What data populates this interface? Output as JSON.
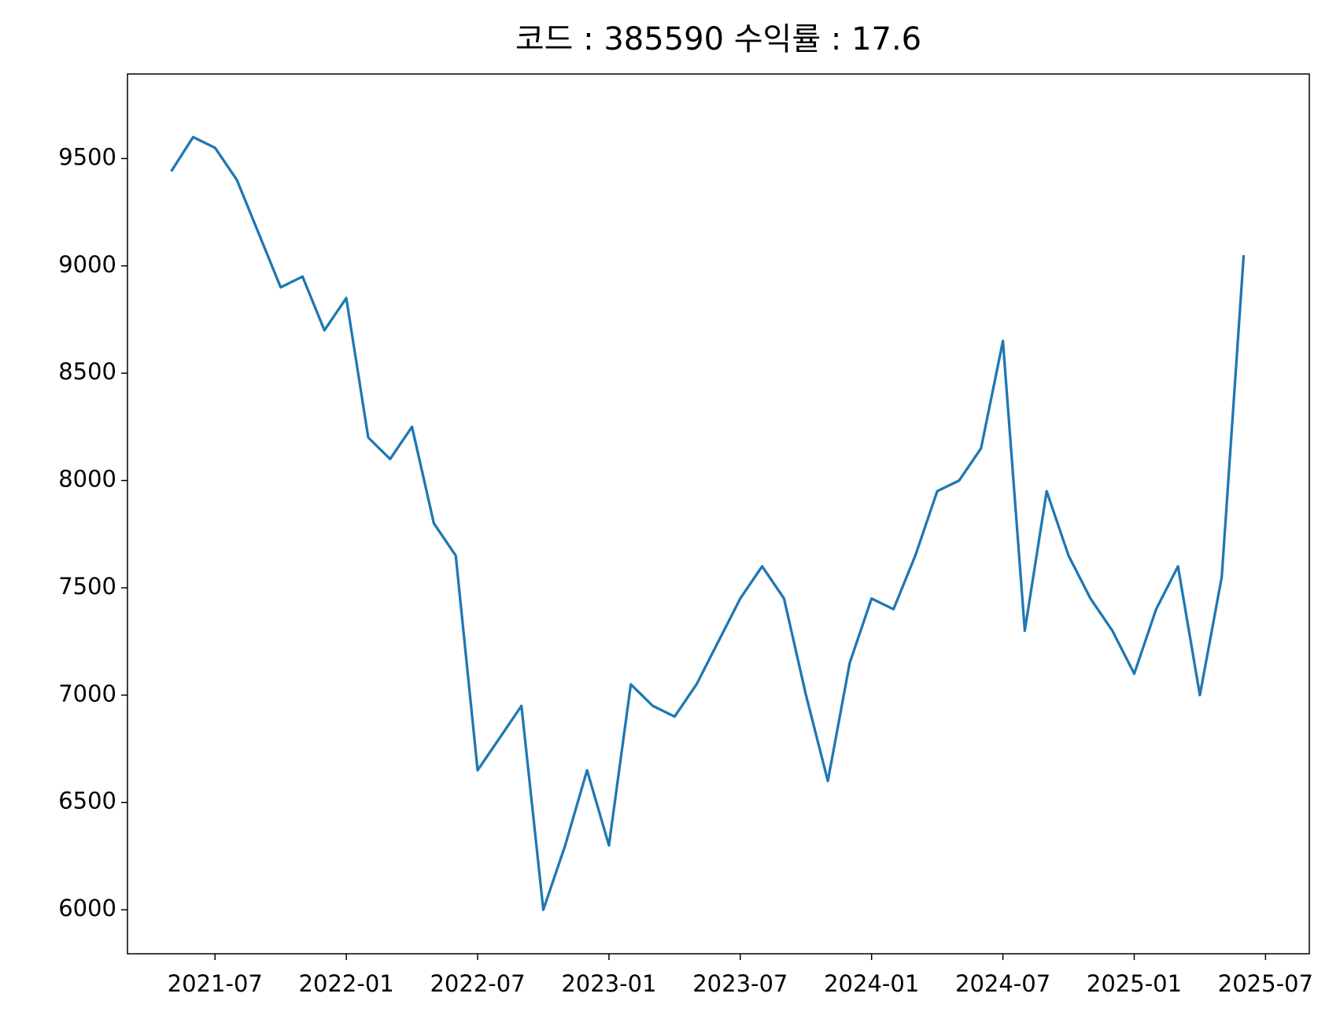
{
  "chart_data": {
    "type": "line",
    "title": "코드 : 385590 수익률 : 17.6",
    "x": [
      "2021-05",
      "2021-06",
      "2021-07",
      "2021-08",
      "2021-09",
      "2021-10",
      "2021-11",
      "2021-12",
      "2022-01",
      "2022-02",
      "2022-03",
      "2022-04",
      "2022-05",
      "2022-06",
      "2022-07",
      "2022-08",
      "2022-09",
      "2022-10",
      "2022-11",
      "2022-12",
      "2023-01",
      "2023-02",
      "2023-03",
      "2023-04",
      "2023-05",
      "2023-06",
      "2023-07",
      "2023-08",
      "2023-09",
      "2023-10",
      "2023-11",
      "2023-12",
      "2024-01",
      "2024-02",
      "2024-03",
      "2024-04",
      "2024-05",
      "2024-06",
      "2024-07",
      "2024-08",
      "2024-09",
      "2024-10",
      "2024-11",
      "2024-12",
      "2025-01",
      "2025-02",
      "2025-03",
      "2025-04",
      "2025-05",
      "2025-06"
    ],
    "values": [
      9440,
      9600,
      9550,
      9400,
      9150,
      8900,
      8950,
      8700,
      8850,
      8200,
      8100,
      8250,
      7800,
      7650,
      6650,
      6800,
      6950,
      6000,
      6300,
      6650,
      6300,
      7050,
      6950,
      6900,
      7050,
      7250,
      7450,
      7600,
      7450,
      7000,
      6600,
      7150,
      7450,
      7400,
      7650,
      7950,
      8000,
      8150,
      8650,
      7300,
      7950,
      7650,
      7450,
      7300,
      7100,
      7400,
      7600,
      7000,
      7550,
      9050
    ],
    "color": "#1f77b4",
    "xlim": [
      "2021-03",
      "2025-09"
    ],
    "xticks": [
      "2021-07",
      "2022-01",
      "2022-07",
      "2023-01",
      "2023-07",
      "2024-01",
      "2024-07",
      "2025-01",
      "2025-07"
    ],
    "ylim": [
      5795,
      9894
    ],
    "yticks": [
      6000,
      6500,
      7000,
      7500,
      8000,
      8500,
      9000,
      9500
    ]
  }
}
